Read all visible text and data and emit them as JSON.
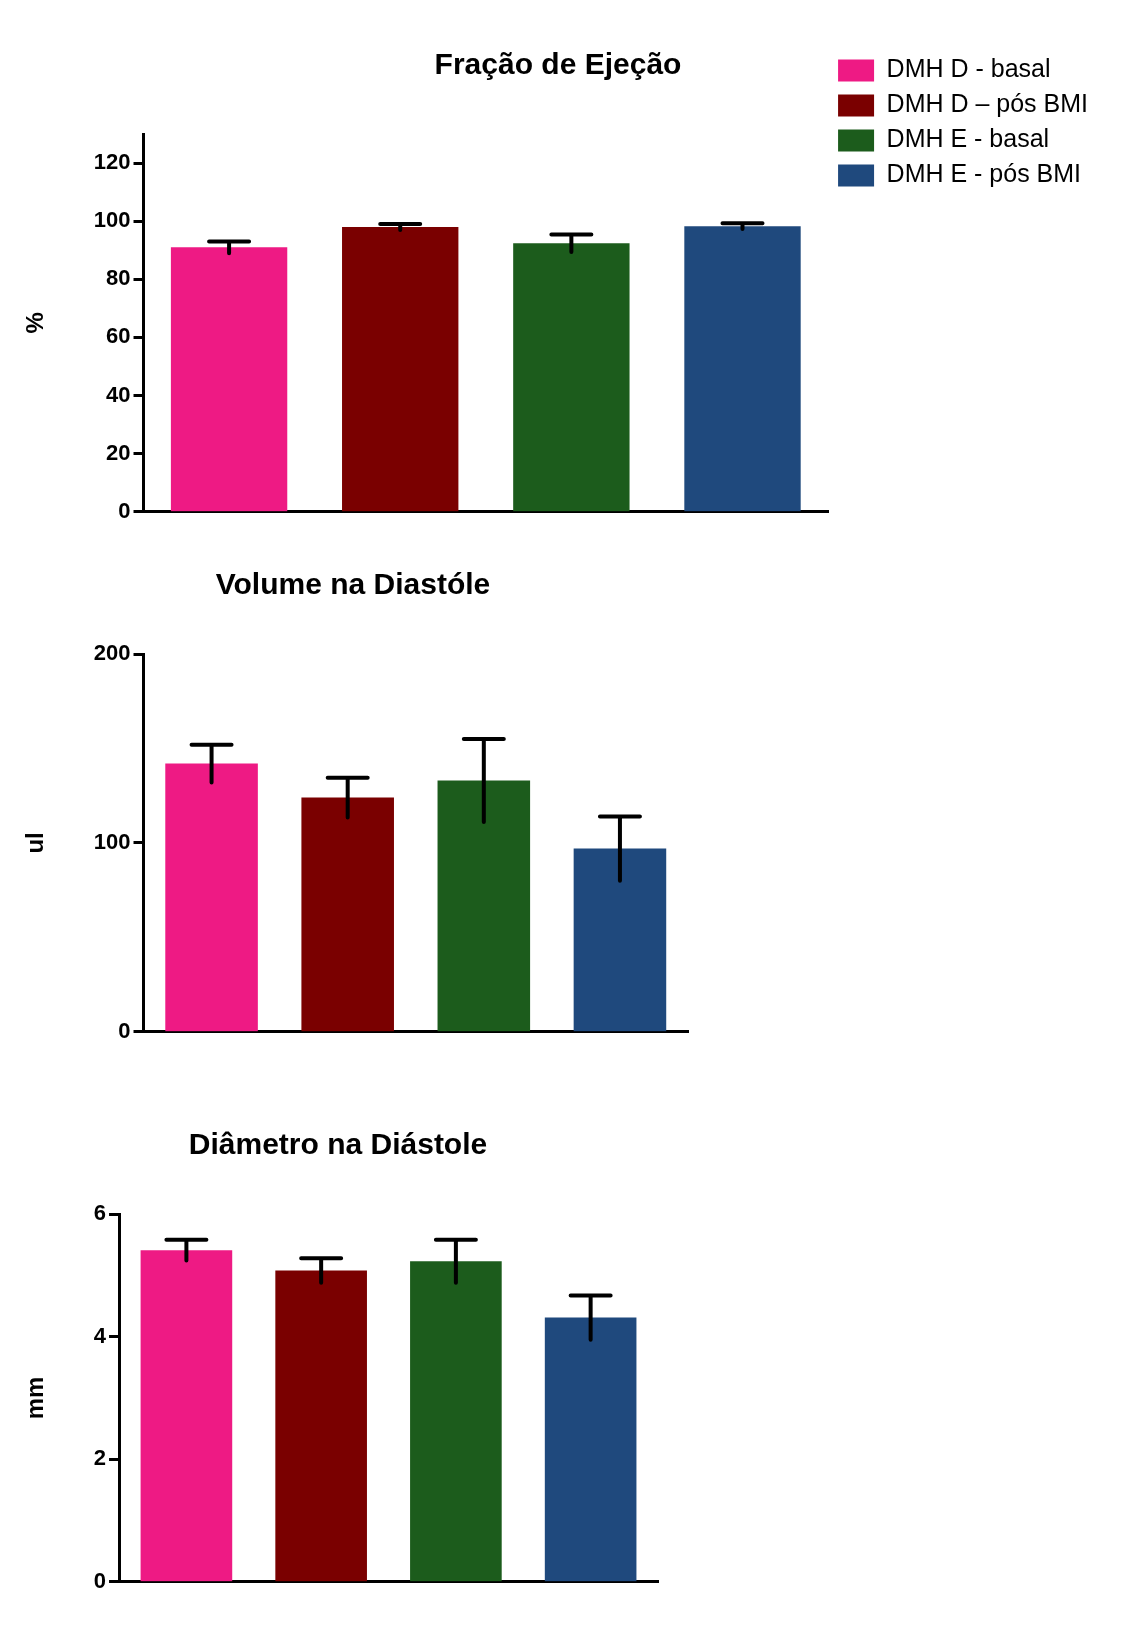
{
  "chart_data": [
    {
      "type": "bar",
      "title": "Fração de Ejeção",
      "ylabel": "%",
      "categories": [
        null,
        null,
        null,
        null
      ],
      "ylim": [
        0,
        130
      ],
      "yticks": [
        0,
        20,
        40,
        60,
        80,
        100,
        120
      ],
      "grid": false,
      "tick_labels": "y",
      "legend": "top right",
      "series": [
        {
          "name": "DMH D - basal",
          "color": "#ee1a84",
          "values": [
            91,
            null,
            null,
            null
          ],
          "errors": [
            2,
            null,
            null,
            null
          ]
        },
        {
          "name": "DMH D – pós BMI",
          "color": "#7a0000",
          "values": [
            null,
            98,
            null,
            null
          ],
          "errors": [
            null,
            1,
            null,
            null
          ]
        },
        {
          "name": "DMH E - basal",
          "color": "#1c5c1c",
          "values": [
            null,
            null,
            92.4,
            null
          ],
          "errors": [
            null,
            null,
            3,
            null
          ]
        },
        {
          "name": "DMH E - pós BMI",
          "color": "#1f497d",
          "values": [
            null,
            null,
            null,
            98.3
          ],
          "errors": [
            null,
            null,
            null,
            1
          ]
        }
      ]
    },
    {
      "type": "bar",
      "title": "Volume na Diastóle",
      "ylabel": "ul",
      "categories": [
        null,
        null,
        null,
        null
      ],
      "ylim": [
        0,
        200
      ],
      "yticks": [
        0,
        100,
        200
      ],
      "grid": false,
      "tick_labels": "y",
      "colors": [
        "#ee1a84",
        "#7a0000",
        "#1c5c1c",
        "#1f497d"
      ],
      "values": [
        142,
        124,
        133,
        97
      ],
      "errors": [
        10,
        10.5,
        22,
        17
      ]
    },
    {
      "type": "bar",
      "title": "Diâmetro na Diástole",
      "ylabel": "mm",
      "categories": [
        null,
        null,
        null,
        null
      ],
      "ylim": [
        0,
        6
      ],
      "yticks": [
        0,
        2,
        4,
        6
      ],
      "grid": false,
      "tick_labels": "y",
      "colors": [
        "#ee1a84",
        "#7a0000",
        "#1c5c1c",
        "#1f497d"
      ],
      "values": [
        5.41,
        5.08,
        5.23,
        4.31
      ],
      "errors": [
        0.17,
        0.2,
        0.35,
        0.36
      ]
    }
  ]
}
